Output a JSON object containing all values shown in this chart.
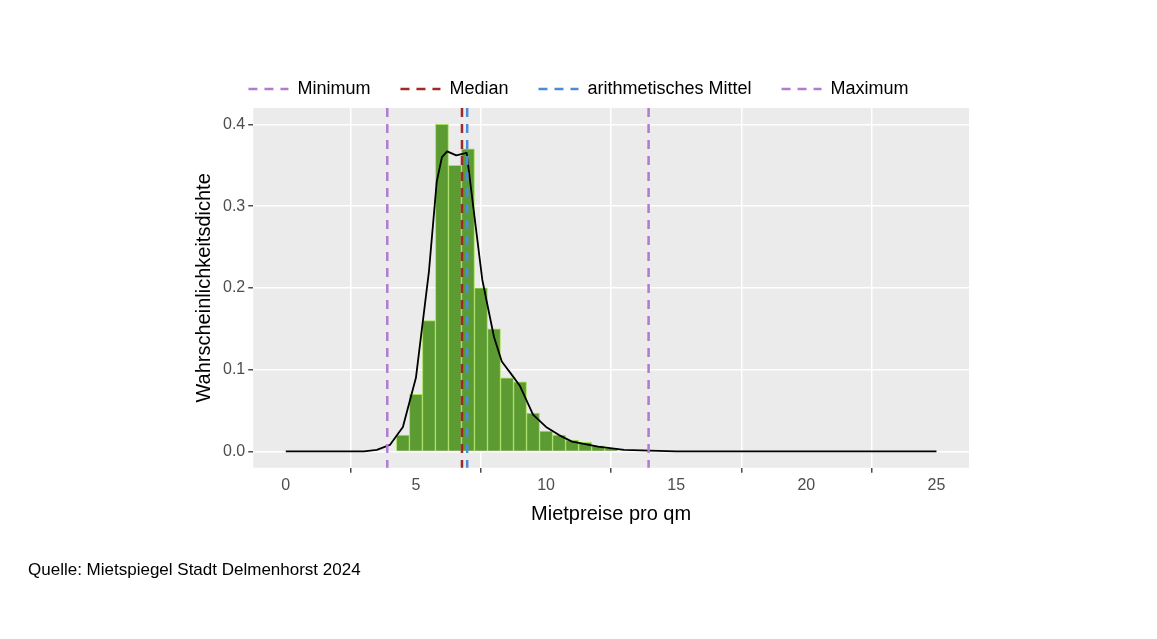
{
  "chart_data": {
    "type": "histogram",
    "xlabel": "Mietpreise pro qm",
    "ylabel": "Wahrscheinlichkeitsdichte",
    "bins": [
      4.25,
      4.75,
      5.25,
      5.75,
      6.25,
      6.75,
      7.25,
      7.75,
      8.25,
      8.75,
      9.25,
      9.75,
      10.25,
      10.75,
      11.25,
      11.75,
      12.25,
      12.75
    ],
    "values": [
      0.02,
      0.07,
      0.16,
      0.4,
      0.35,
      0.37,
      0.2,
      0.15,
      0.09,
      0.085,
      0.047,
      0.025,
      0.02,
      0.014,
      0.011,
      0.007,
      0.004
    ],
    "color": "#5b9b31",
    "series": [
      {
        "type": "line",
        "color": "#000000",
        "x": [
          0,
          3,
          3.5,
          4,
          4.5,
          5,
          5.5,
          5.8,
          6,
          6.2,
          6.55,
          6.95,
          7.2,
          7.55,
          8,
          8.3,
          8.7,
          9,
          9.5,
          10,
          10.5,
          11,
          12,
          13,
          14,
          15,
          25
        ],
        "values": [
          0,
          0,
          0.002,
          0.008,
          0.03,
          0.09,
          0.22,
          0.33,
          0.36,
          0.367,
          0.362,
          0.365,
          0.3,
          0.21,
          0.14,
          0.11,
          0.093,
          0.08,
          0.045,
          0.03,
          0.02,
          0.012,
          0.006,
          0.002,
          0.001,
          0,
          0
        ]
      }
    ],
    "ref_lines": [
      {
        "axis": "x",
        "value": 3.9,
        "label": "Minimum",
        "color": "#b07cd0",
        "line_style": "dashed"
      },
      {
        "axis": "x",
        "value": 6.77,
        "label": "Median",
        "color": "#9b2a2a",
        "line_style": "dashed"
      },
      {
        "axis": "x",
        "value": 6.97,
        "label": "arithmetisches Mittel",
        "color": "#4a8fd6",
        "line_style": "dashed"
      },
      {
        "axis": "x",
        "value": 13.94,
        "label": "Maximum",
        "color": "#b07cd0",
        "line_style": "dashed"
      }
    ],
    "xlim": [
      -1.25,
      26.25
    ],
    "xticks": [
      0,
      5,
      10,
      15,
      20,
      25
    ],
    "ylim": [
      -0.02,
      0.42
    ],
    "yticks": [
      {
        "value": 0,
        "label": "0.0"
      },
      {
        "value": 0.1,
        "label": "0.1"
      },
      {
        "value": 0.2,
        "label": "0.2"
      },
      {
        "value": 0.3,
        "label": "0.3"
      },
      {
        "value": 0.4,
        "label": "0.4"
      }
    ],
    "grid": true,
    "legend": "top",
    "annotations": [
      "Quelle: Mietspiegel Stadt Delmenhorst 2024"
    ]
  }
}
